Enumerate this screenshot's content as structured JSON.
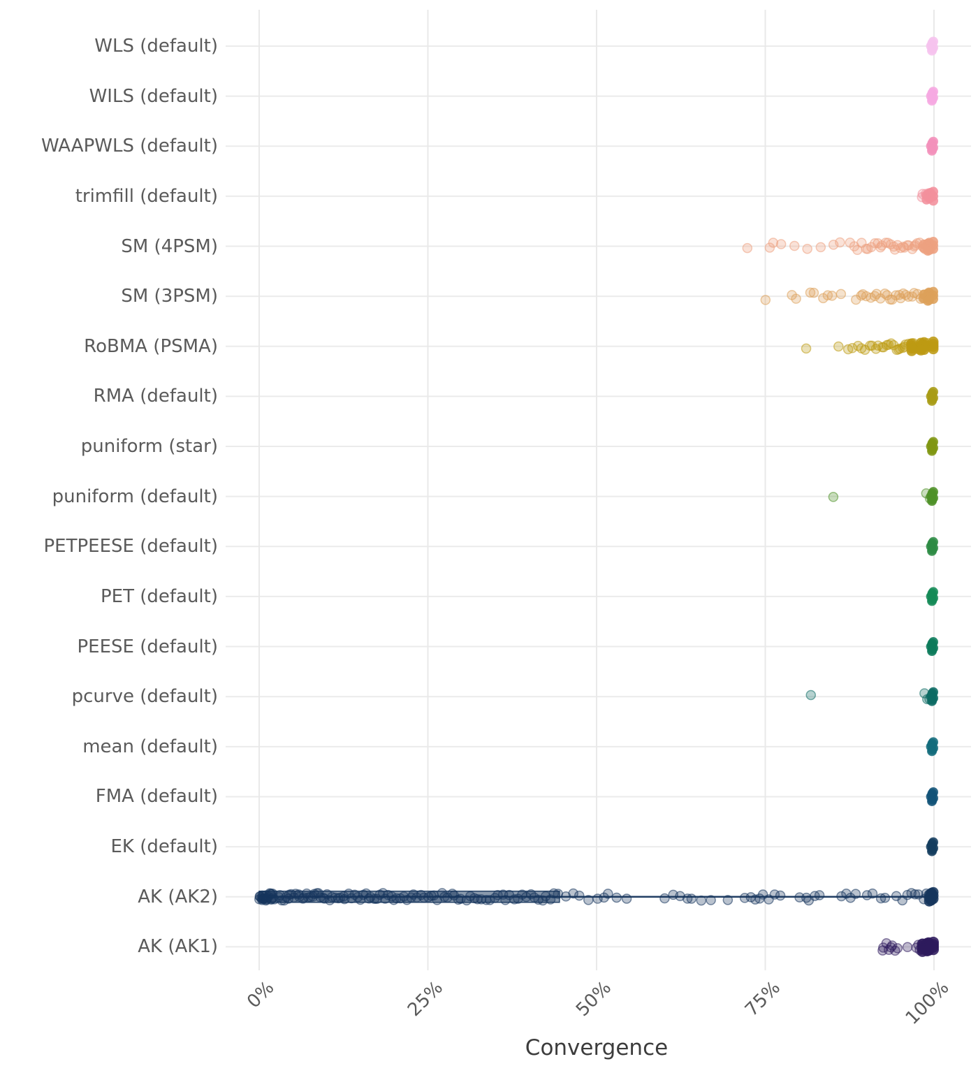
{
  "chart_data": {
    "type": "scatter",
    "title": "",
    "xlabel": "Convergence",
    "x_range": [
      0,
      100
    ],
    "grid": true,
    "legend": "none",
    "x_ticks": [
      {
        "label": "0%",
        "value": 0
      },
      {
        "label": "25%",
        "value": 25
      },
      {
        "label": "50%",
        "value": 50
      },
      {
        "label": "75%",
        "value": 75
      },
      {
        "label": "100%",
        "value": 100
      }
    ],
    "categories": [
      {
        "label": "WLS (default)",
        "color": "#f6c3ee",
        "points": [],
        "cluster": 7
      },
      {
        "label": "WILS (default)",
        "color": "#f6a9e1",
        "points": [],
        "cluster": 7
      },
      {
        "label": "WAAPWLS (default)",
        "color": "#f391bb",
        "points": [],
        "cluster": 7
      },
      {
        "label": "trimfill (default)",
        "color": "#f2909c",
        "points": [
          98.1,
          98.4,
          98.7,
          99.0,
          99.3,
          99.6
        ],
        "cluster": 9,
        "cluster_spread": 1.0
      },
      {
        "label": "SM (4PSM)",
        "color": "#eda07f",
        "points": [
          72.4,
          75.6,
          76.2,
          77.3,
          79.3,
          81.3,
          83.3,
          85.2,
          86.0,
          87.6,
          88.2,
          88.8,
          89.2,
          89.8,
          90.3,
          90.7,
          91.2,
          91.6,
          92.0,
          92.4,
          92.8,
          93.2,
          93.6,
          94.0,
          94.3,
          94.7,
          95.0,
          95.4,
          95.7,
          96.0,
          96.4,
          96.7,
          97.0,
          97.3,
          97.6,
          98.0,
          98.3,
          98.6,
          99.0,
          99.3
        ],
        "cluster": 11,
        "cluster_spread": 1.4
      },
      {
        "label": "SM (3PSM)",
        "color": "#dda05a",
        "points": [
          74.9,
          79.0,
          79.6,
          81.6,
          82.3,
          83.6,
          84.3,
          85.0,
          86.3,
          88.3,
          89.1,
          89.6,
          90.1,
          90.6,
          91.1,
          91.6,
          92.1,
          92.6,
          93.0,
          93.5,
          93.9,
          94.3,
          94.7,
          95.1,
          95.5,
          95.9,
          96.3,
          96.7,
          97.1,
          97.5,
          97.9,
          98.3,
          98.7,
          99.1
        ],
        "cluster": 11,
        "cluster_spread": 1.4
      },
      {
        "label": "RoBMA (PSMA)",
        "color": "#bd9a12",
        "points": [
          81.2,
          85.8,
          87.2,
          88.0,
          88.7,
          89.3,
          89.9,
          90.4,
          90.9,
          91.4,
          91.8,
          92.2,
          92.6,
          93.0,
          93.4,
          93.7,
          94.0,
          94.4,
          94.7,
          95.0,
          95.3,
          95.6,
          95.9,
          96.2,
          96.5,
          96.8,
          97.0,
          97.3,
          97.5,
          97.8,
          98.0,
          98.2,
          98.5,
          98.7,
          99.0,
          99.2,
          99.5
        ],
        "cluster": 16,
        "cluster_spread": 3.2,
        "cluster_r": 7.5
      },
      {
        "label": "RMA (default)",
        "color": "#a89c16",
        "points": [],
        "cluster": 7
      },
      {
        "label": "puniform (star)",
        "color": "#7f9612",
        "points": [],
        "cluster": 7
      },
      {
        "label": "puniform (default)",
        "color": "#4e9128",
        "points": [
          85.2,
          99.0,
          99.4
        ],
        "cluster": 7
      },
      {
        "label": "PETPEESE (default)",
        "color": "#2e8b44",
        "points": [],
        "cluster": 7
      },
      {
        "label": "PET (default)",
        "color": "#148a56",
        "points": [],
        "cluster": 7
      },
      {
        "label": "PEESE (default)",
        "color": "#0d7b5b",
        "points": [],
        "cluster": 7
      },
      {
        "label": "pcurve (default)",
        "color": "#0d6b64",
        "points": [
          81.8,
          98.6,
          99.0,
          99.3
        ],
        "cluster": 7
      },
      {
        "label": "mean (default)",
        "color": "#136c7c",
        "points": [],
        "cluster": 7
      },
      {
        "label": "FMA (default)",
        "color": "#125377",
        "points": [],
        "cluster": 7
      },
      {
        "label": "EK (default)",
        "color": "#153e5e",
        "points": [],
        "cluster": 7
      },
      {
        "label": "AK (AK2)",
        "color": "#16355c",
        "box": [
          0,
          44.5
        ],
        "line": [
          0,
          100
        ],
        "points": [
          0.0,
          0.05,
          0.15,
          0.25,
          0.3,
          0.45,
          0.5,
          0.6,
          0.7,
          0.75,
          0.9,
          1.0,
          1.05,
          1.2,
          1.3,
          1.35,
          1.5,
          1.6,
          1.65,
          1.8,
          1.9,
          1.95,
          2.1,
          2.4,
          2.8,
          3.1,
          3.4,
          3.7,
          4.0,
          4.3,
          4.6,
          4.9,
          5.2,
          5.5,
          5.8,
          6.1,
          6.4,
          6.7,
          7.0,
          7.3,
          7.6,
          7.9,
          8.2,
          8.5,
          8.8,
          9.1,
          9.4,
          9.7,
          10.0,
          10.4,
          10.8,
          11.2,
          11.6,
          12.0,
          12.4,
          12.8,
          13.2,
          13.6,
          14.0,
          14.5,
          15.0,
          15.4,
          15.8,
          16.2,
          16.6,
          17.0,
          17.5,
          18.0,
          18.4,
          18.8,
          19.2,
          19.6,
          20.0,
          20.5,
          21.0,
          21.5,
          22.0,
          22.5,
          23.0,
          23.5,
          24.0,
          24.5,
          25.0,
          25.5,
          26.0,
          26.5,
          27.0,
          27.5,
          28.0,
          28.5,
          29.0,
          29.5,
          30.0,
          30.6,
          31.2,
          31.8,
          32.4,
          33.0,
          33.6,
          34.2,
          34.8,
          35.4,
          36.0,
          36.6,
          37.2,
          37.8,
          38.4,
          39.0,
          39.6,
          40.2,
          40.8,
          41.4,
          42.0,
          42.6,
          43.2,
          43.8,
          44.3,
          45.5,
          46.5,
          47.5,
          48.9,
          50.2,
          51.0,
          51.8,
          53.0,
          54.5,
          60.0,
          61.5,
          62.5,
          63.5,
          64.0,
          65.5,
          67.0,
          69.5,
          72.0,
          72.8,
          73.5,
          74.2,
          74.8,
          75.6,
          76.4,
          77.2,
          80.2,
          81.0,
          81.6,
          82.2,
          83.0,
          86.2,
          87.0,
          87.7,
          88.3,
          90.0,
          90.8,
          92.0,
          92.8,
          94.5,
          95.2,
          96.0,
          96.6,
          97.2,
          97.8,
          98.4,
          99.0
        ],
        "cluster": 12,
        "cluster_r": 7.5,
        "cluster_spread": 0.6
      },
      {
        "label": "AK (AK1)",
        "color": "#2d1a5c",
        "points": [
          92.3,
          92.6,
          92.9,
          93.2,
          93.5,
          93.8,
          94.1,
          94.5,
          96.2,
          97.3,
          97.6,
          97.9,
          98.2,
          98.5,
          98.8,
          99.0,
          99.2
        ],
        "cluster": 16,
        "cluster_r": 8,
        "cluster_spread": 1.6
      }
    ]
  }
}
